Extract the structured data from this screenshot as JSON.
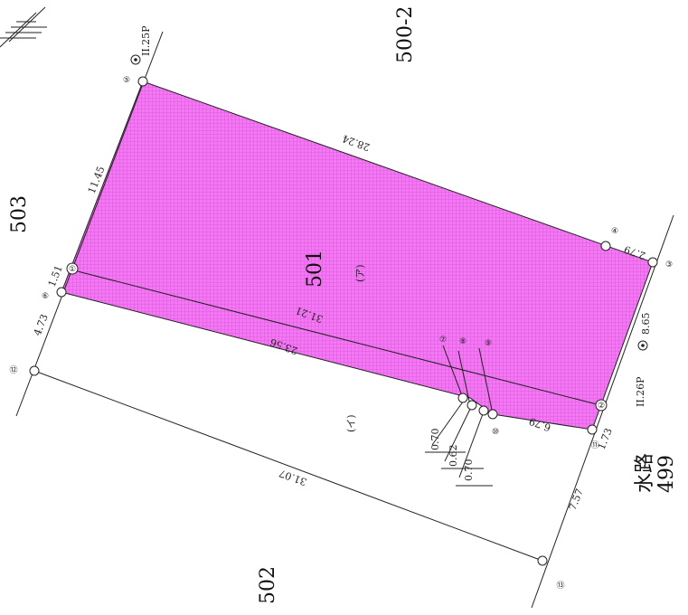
{
  "parcels": {
    "main": "501",
    "upper_left": "503",
    "lower_left": "502",
    "upper_right": "500-2",
    "waterway_line1": "水路",
    "waterway_line2": "499",
    "subdivision_a": "(ア)",
    "subdivision_b": "(イ)"
  },
  "distances": {
    "d_5_4": "28.24",
    "d_5_1": "11.45",
    "d_4_3": "2.79",
    "d_1_6": "1.51",
    "d_6_12": "4.73",
    "d_3_2": "8.65",
    "d_2_11": "1.73",
    "d_11_13": "7.57",
    "d_11_10": "6.79",
    "d_12_13": "31.07",
    "d_6_7": "23.56",
    "d_1_2": "31.21",
    "c_7": "0.70",
    "c_8": "0.62",
    "c_9": "0.70"
  },
  "markers": {
    "bm5": "II.25P",
    "bm2": "II.26P"
  },
  "points": [
    "①",
    "②",
    "③",
    "④",
    "⑤",
    "⑥",
    "⑦",
    "⑧",
    "⑨",
    "⑩",
    "⑪",
    "⑫",
    "⑬"
  ],
  "colors": {
    "fill": "#ee55ee",
    "line": "#222222"
  }
}
